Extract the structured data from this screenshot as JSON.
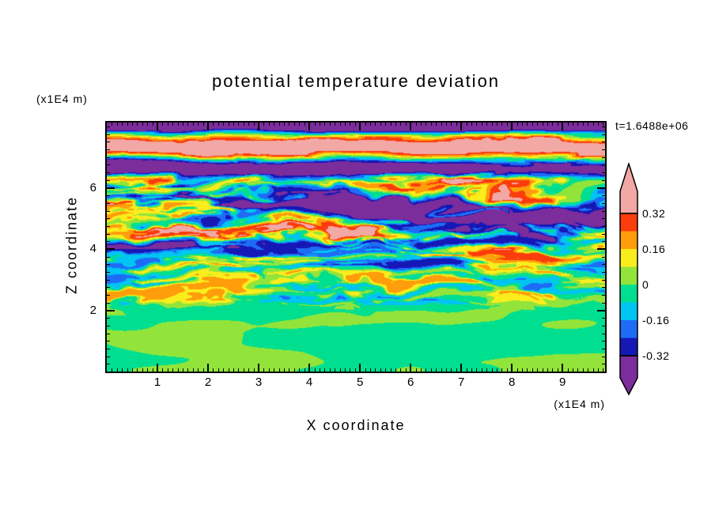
{
  "title": "potential temperature deviation",
  "time_label": "t=1.6488e+06",
  "axes": {
    "x_label": "X coordinate",
    "x_unit": "(x1E4 m)",
    "z_label": "Z coordinate",
    "z_unit": "(x1E4 m)",
    "x_ticks": [
      1,
      2,
      3,
      4,
      5,
      6,
      7,
      8,
      9
    ],
    "z_ticks": [
      2,
      4,
      6
    ]
  },
  "colorbar": {
    "tick_labels_top_to_bottom": [
      "0.32",
      "0.16",
      "0",
      "-0.16",
      "-0.32"
    ],
    "above_color": "#F2A8A4",
    "below_color": "#7B2D9B",
    "band_colors_low_to_high": [
      "#1618B6",
      "#1E6CF5",
      "#00C4F2",
      "#00DF8F",
      "#93E43A",
      "#F9EE1C",
      "#FF9D0A",
      "#FB3C0C"
    ],
    "levels": [
      -0.32,
      -0.24,
      -0.16,
      -0.08,
      0,
      0.08,
      0.16,
      0.24,
      0.32
    ]
  },
  "chart_data": {
    "type": "heatmap",
    "title": "potential temperature deviation",
    "xlabel": "X coordinate (x1E4 m)",
    "ylabel": "Z coordinate (x1E4 m)",
    "x_range": [
      0,
      9.84
    ],
    "z_range": [
      0,
      8.13
    ],
    "x_tick_values": [
      1,
      2,
      3,
      4,
      5,
      6,
      7,
      8,
      9
    ],
    "z_tick_values": [
      2,
      4,
      6
    ],
    "contour_levels": [
      -0.32,
      -0.24,
      -0.16,
      -0.08,
      0,
      0.08,
      0.16,
      0.24,
      0.32
    ],
    "colorbar_labels_top_to_bottom": [
      "0.32",
      "0.16",
      "0",
      "-0.16",
      "-0.32"
    ],
    "time_annotation": "t=1.6488e+06",
    "legend_position": "right",
    "grid": false,
    "regions": [
      {
        "z_range": [
          0,
          2.3
        ],
        "description": "near-zero smooth field: broad blobs of the two green bands (|v| < 0.08)"
      },
      {
        "z_range": [
          2.3,
          6.3
        ],
        "description": "thin turbulent horizontal streaks spanning the full color range (red/orange/yellow/green/cyan/blue/navy)"
      },
      {
        "z_range": [
          6.3,
          8.13
        ],
        "description": "strongly stratified alternating layers exceeding the scale: salmon-pink (> 0.32) and purple (< -0.32) bands, purple band at the very top"
      }
    ]
  }
}
